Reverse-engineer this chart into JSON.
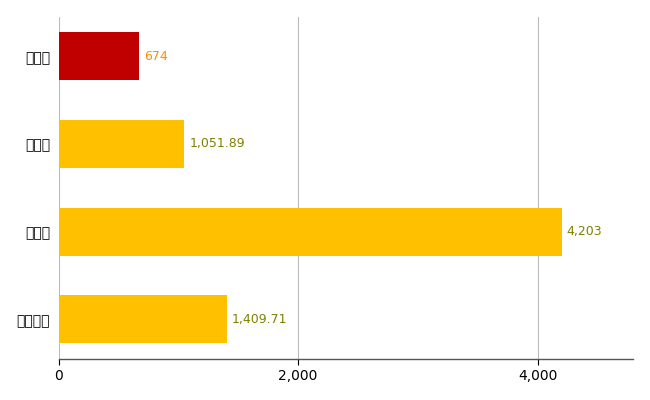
{
  "categories": [
    "全国平均",
    "県最大",
    "県平均",
    "桜川市"
  ],
  "values": [
    1409.71,
    4203,
    1051.89,
    674
  ],
  "bar_colors": [
    "#FFC000",
    "#FFC000",
    "#FFC000",
    "#C00000"
  ],
  "labels": [
    "1,409.71",
    "4,203",
    "1,051.89",
    "674"
  ],
  "xlabel": "",
  "ylabel": "",
  "xlim": [
    0,
    4800
  ],
  "xticks": [
    0,
    2000,
    4000
  ],
  "background_color": "#FFFFFF",
  "grid_color": "#BBBBBB",
  "label_color_main": "#808000",
  "label_color_sakura": "#FF8C00",
  "bar_height": 0.55,
  "figsize": [
    6.5,
    4.0
  ],
  "dpi": 100
}
